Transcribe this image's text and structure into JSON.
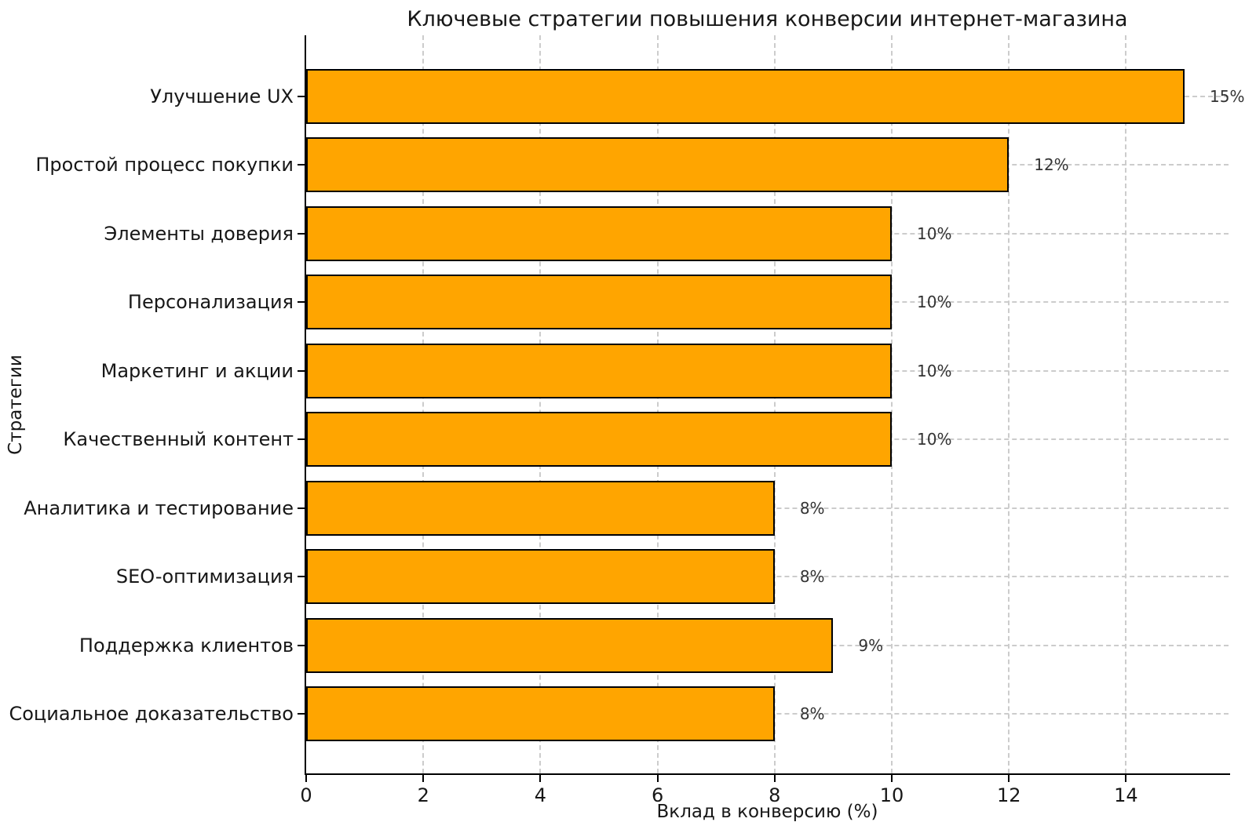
{
  "chart_data": {
    "type": "bar",
    "orientation": "horizontal",
    "title": "Ключевые стратегии повышения конверсии интернет-магазина",
    "xlabel": "Вклад в конверсию (%)",
    "ylabel": "Стратегии",
    "categories": [
      "Улучшение UX",
      "Простой процесс покупки",
      "Элементы доверия",
      "Персонализация",
      "Маркетинг и акции",
      "Качественный контент",
      "Аналитика и тестирование",
      "SEO-оптимизация",
      "Поддержка клиентов",
      "Социальное доказательство"
    ],
    "values": [
      15,
      12,
      10,
      10,
      10,
      10,
      8,
      8,
      9,
      8
    ],
    "value_labels": [
      "15%",
      "12%",
      "10%",
      "10%",
      "10%",
      "10%",
      "8%",
      "8%",
      "9%",
      "8%"
    ],
    "x_ticks": [
      0,
      2,
      4,
      6,
      8,
      10,
      12,
      14
    ],
    "xlim": [
      0,
      15.75
    ],
    "grid": true,
    "grid_style": "dashed",
    "grid_color": "#cccccc",
    "bar_color": "#FFA500",
    "bar_edge_color": "#000000",
    "background_color": "#ffffff",
    "legend": "none"
  }
}
